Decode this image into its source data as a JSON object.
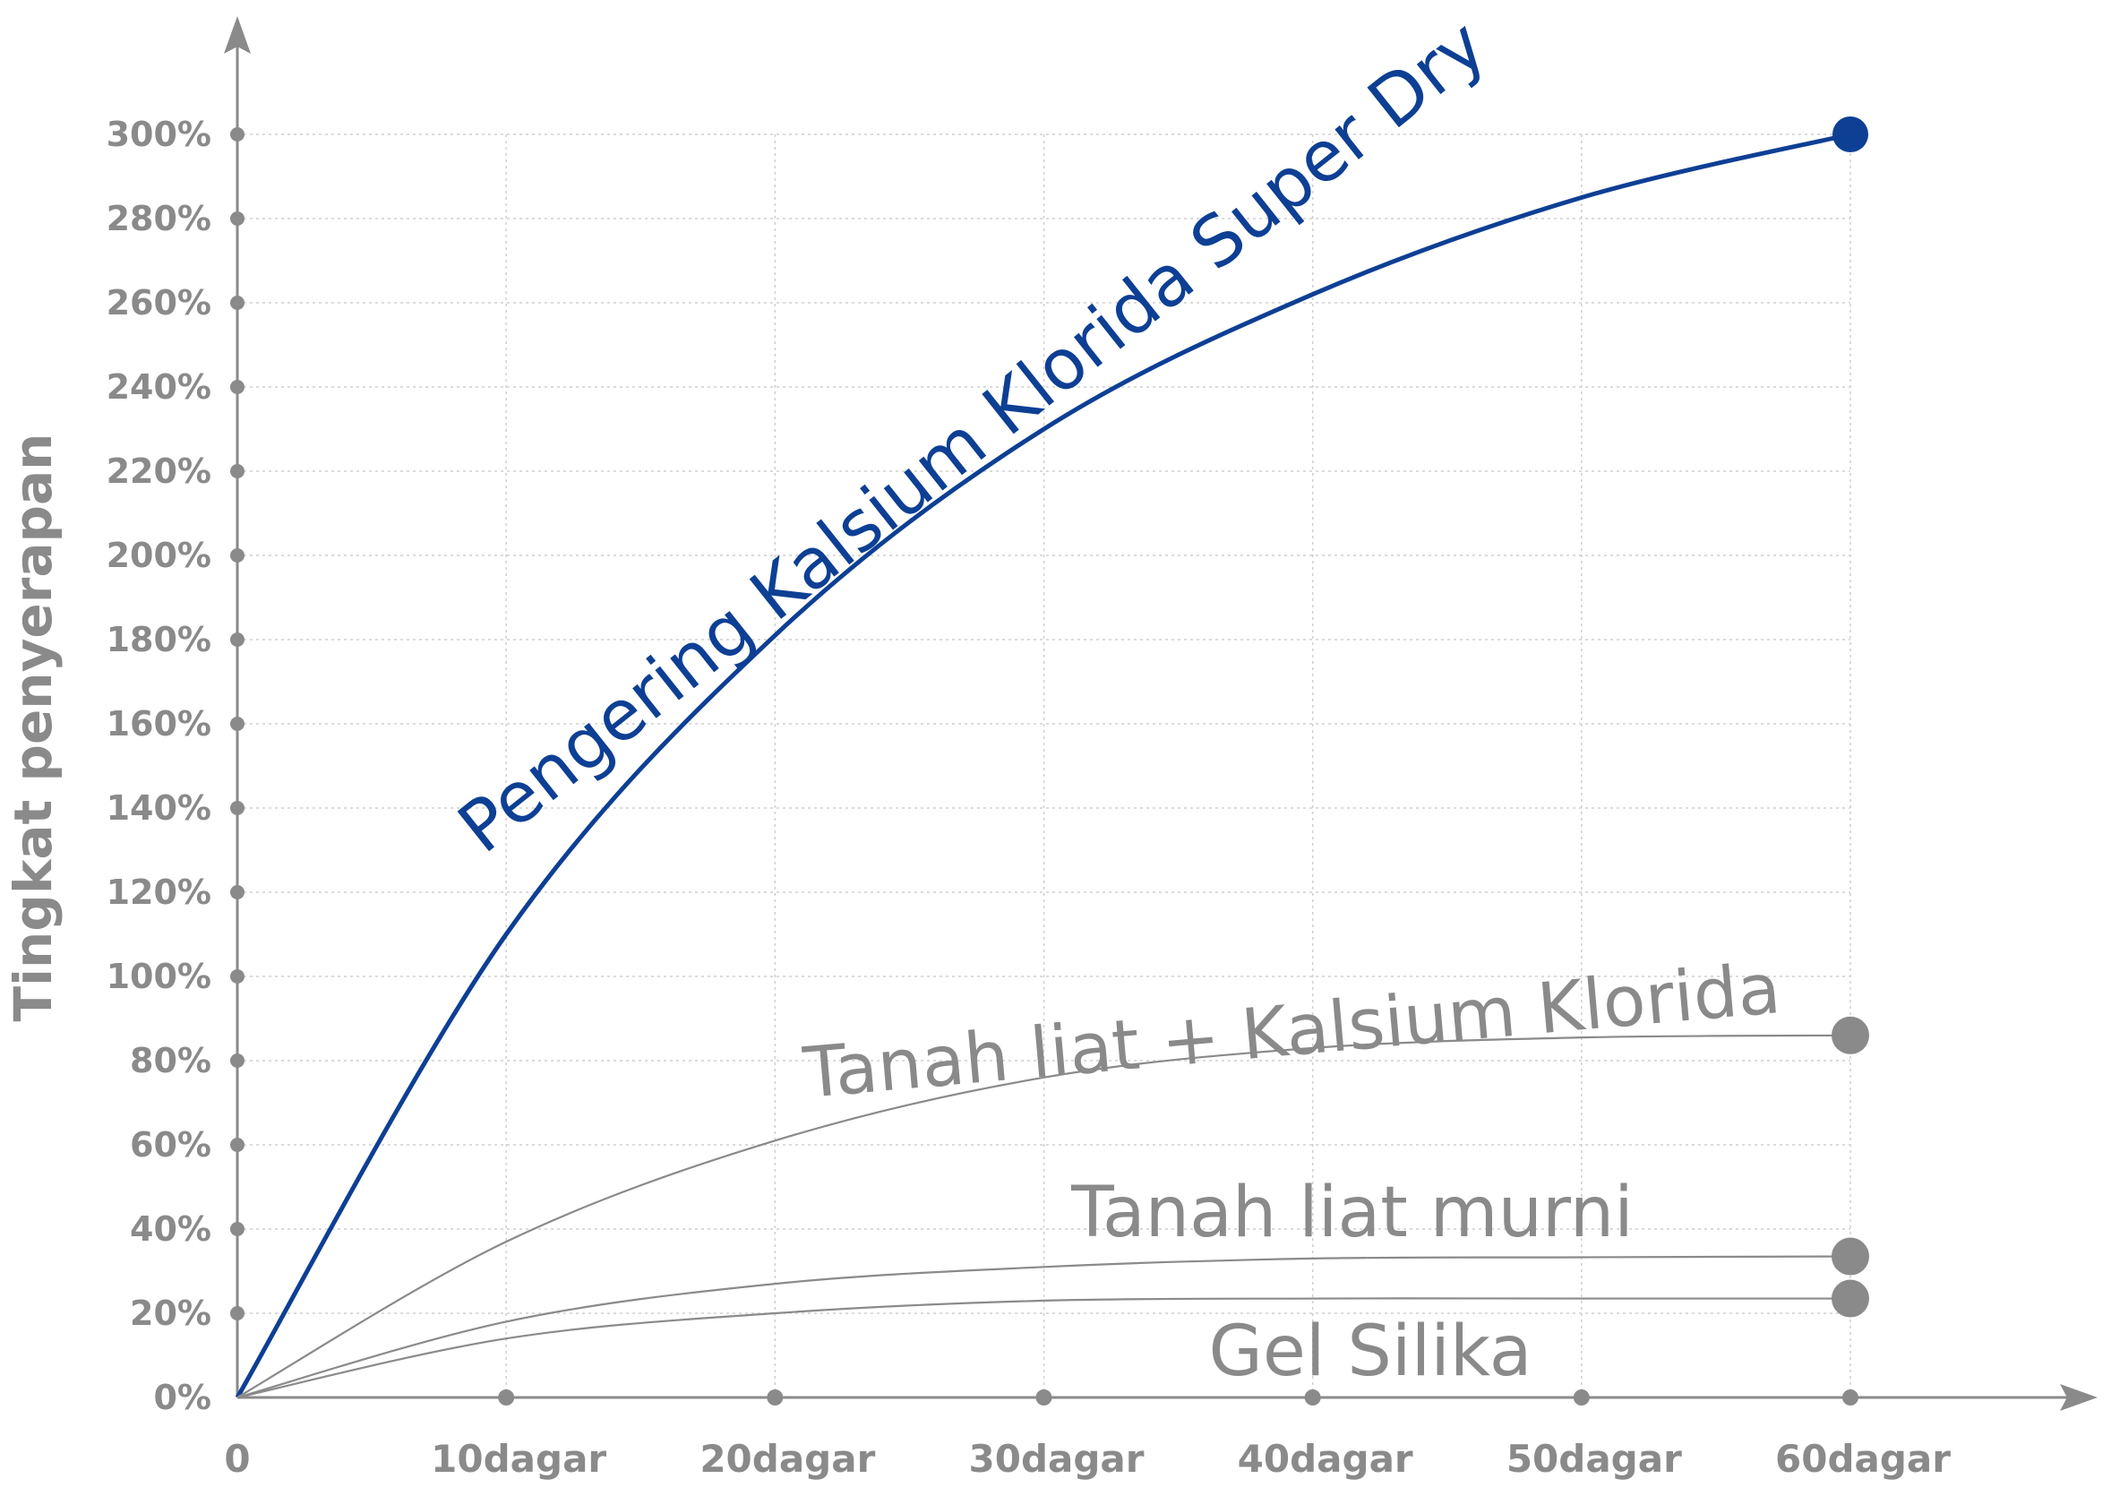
{
  "chart_data": {
    "type": "line",
    "title": "",
    "xlabel": "",
    "ylabel": "Tingkat penyerapan",
    "x": [
      0,
      10,
      20,
      30,
      40,
      50,
      60
    ],
    "x_tick_labels": [
      "0",
      "10dagar",
      "20dagar",
      "30dagar",
      "40dagar",
      "50dagar",
      "60dagar"
    ],
    "y_tick_labels": [
      "0%",
      "20%",
      "40%",
      "60%",
      "80%",
      "100%",
      "120%",
      "140%",
      "160%",
      "180%",
      "200%",
      "220%",
      "240%",
      "260%",
      "280%",
      "300%"
    ],
    "xlim": [
      0,
      60
    ],
    "ylim": [
      0,
      300
    ],
    "grid": true,
    "series": [
      {
        "name": "Pengering Kalsium Klorida Super Dry",
        "color": "#0d3f94",
        "x": [
          0,
          10,
          20,
          30,
          40,
          50,
          60
        ],
        "values": [
          0,
          110,
          181,
          230,
          262,
          285,
          300
        ]
      },
      {
        "name": "Tanah liat + Kalsium Klorida",
        "color": "#8a8a8a",
        "x": [
          0,
          10,
          20,
          30,
          40,
          50,
          60
        ],
        "values": [
          0,
          37,
          61,
          76,
          83,
          85.5,
          86
        ]
      },
      {
        "name": "Tanah liat murni",
        "color": "#8a8a8a",
        "x": [
          0,
          10,
          20,
          30,
          40,
          50,
          60
        ],
        "values": [
          0,
          18,
          27,
          31,
          33,
          33.3,
          33.5
        ]
      },
      {
        "name": "Gel Silika",
        "color": "#8a8a8a",
        "x": [
          0,
          10,
          20,
          30,
          40,
          50,
          60
        ],
        "values": [
          0,
          14,
          20,
          23,
          23.5,
          23.5,
          23.5
        ]
      }
    ]
  }
}
